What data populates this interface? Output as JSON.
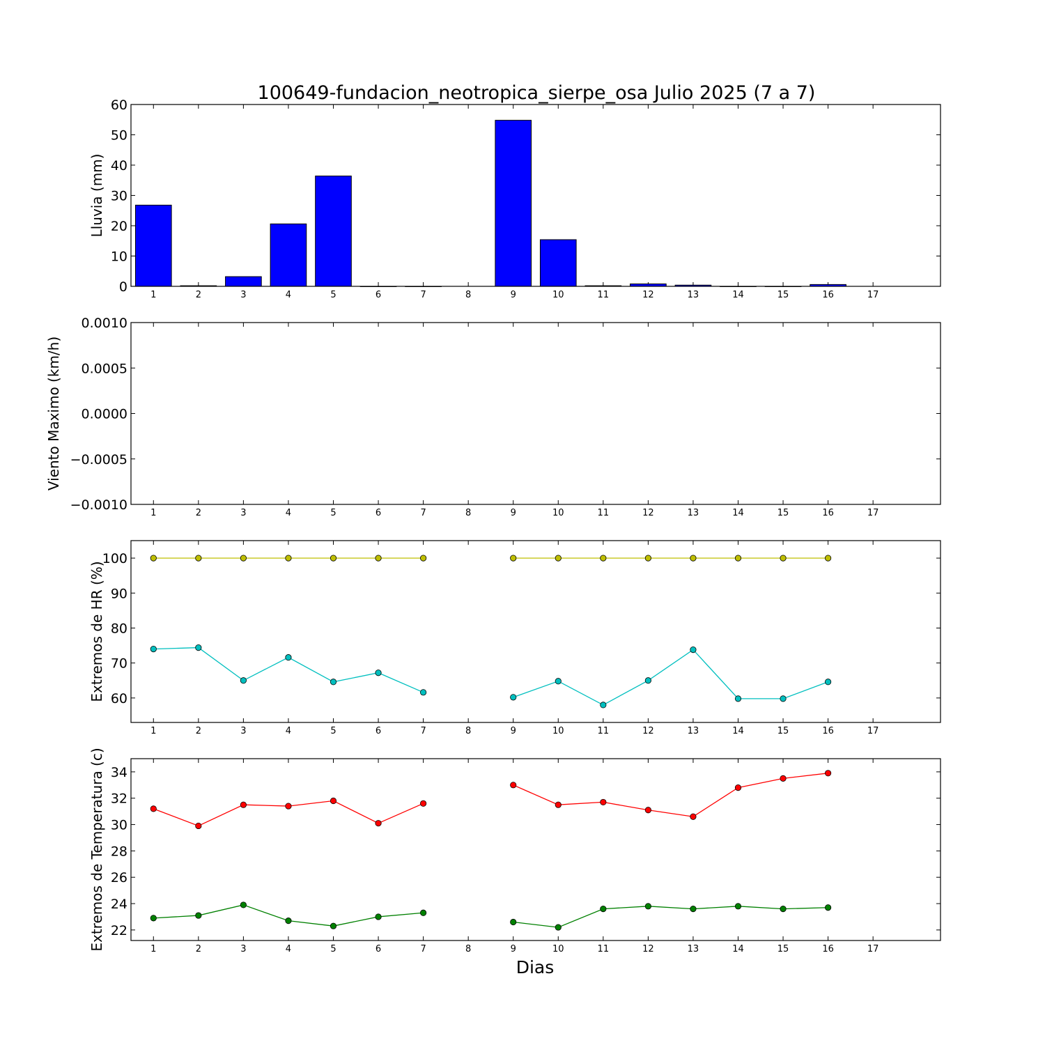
{
  "chart_data": [
    {
      "type": "bar",
      "title": "100649-fundacion_neotropica_sierpe_osa Julio 2025  (7 a 7)",
      "ylabel": "Lluvia (mm)",
      "xlabel": "",
      "categories": [
        1,
        2,
        3,
        4,
        5,
        6,
        7,
        8,
        9,
        10,
        11,
        12,
        13,
        14,
        15,
        16,
        17
      ],
      "values": [
        26.8,
        0.2,
        3.2,
        20.6,
        36.4,
        0,
        0,
        null,
        54.8,
        15.4,
        0.2,
        0.8,
        0.4,
        0,
        0,
        0.6,
        null
      ],
      "ylim": [
        0,
        60
      ],
      "yticks": [
        "0",
        "10",
        "20",
        "30",
        "40",
        "50",
        "60"
      ],
      "colors": {
        "bar": "#0000ff"
      }
    },
    {
      "type": "line",
      "title": "",
      "ylabel": "Viento Maximo (km/h)",
      "xlabel": "",
      "x": [
        1,
        2,
        3,
        4,
        5,
        6,
        7,
        8,
        9,
        10,
        11,
        12,
        13,
        14,
        15,
        16,
        17
      ],
      "series": [],
      "ylim": [
        -0.001,
        0.001
      ],
      "yticks": [
        "−0.0010",
        "−0.0005",
        "0.0000",
        "0.0005",
        "0.0010"
      ]
    },
    {
      "type": "line",
      "title": "",
      "ylabel": "Extremos de HR (%)",
      "xlabel": "",
      "x": [
        1,
        2,
        3,
        4,
        5,
        6,
        7,
        8,
        9,
        10,
        11,
        12,
        13,
        14,
        15,
        16,
        17
      ],
      "series": [
        {
          "color": "#bfbf00",
          "values": [
            100,
            100,
            100,
            100,
            100,
            100,
            100,
            null,
            100,
            100,
            100,
            100,
            100,
            100,
            100,
            100,
            null
          ]
        },
        {
          "color": "#00bfbf",
          "values": [
            74,
            74.4,
            65,
            71.6,
            64.6,
            67.2,
            61.6,
            null,
            60.2,
            64.8,
            58,
            65,
            73.8,
            59.8,
            59.8,
            64.6,
            null
          ]
        }
      ],
      "ylim": [
        53,
        105
      ],
      "yticks": [
        "60",
        "70",
        "80",
        "90",
        "100"
      ]
    },
    {
      "type": "line",
      "title": "",
      "ylabel": "Extremos de Temperatura (c)",
      "xlabel": "Dias",
      "x": [
        1,
        2,
        3,
        4,
        5,
        6,
        7,
        8,
        9,
        10,
        11,
        12,
        13,
        14,
        15,
        16,
        17
      ],
      "series": [
        {
          "color": "#ff0000",
          "values": [
            31.2,
            29.9,
            31.5,
            31.4,
            31.8,
            30.1,
            31.6,
            null,
            33,
            31.5,
            31.7,
            31.1,
            30.6,
            32.8,
            33.5,
            33.9,
            null
          ]
        },
        {
          "color": "#008000",
          "values": [
            22.9,
            23.1,
            23.9,
            22.7,
            22.3,
            23,
            23.3,
            null,
            22.6,
            22.2,
            23.6,
            23.8,
            23.6,
            23.8,
            23.6,
            23.7,
            null
          ]
        }
      ],
      "ylim": [
        21.2,
        35
      ],
      "yticks": [
        "22",
        "24",
        "26",
        "28",
        "30",
        "32",
        "34"
      ]
    }
  ]
}
